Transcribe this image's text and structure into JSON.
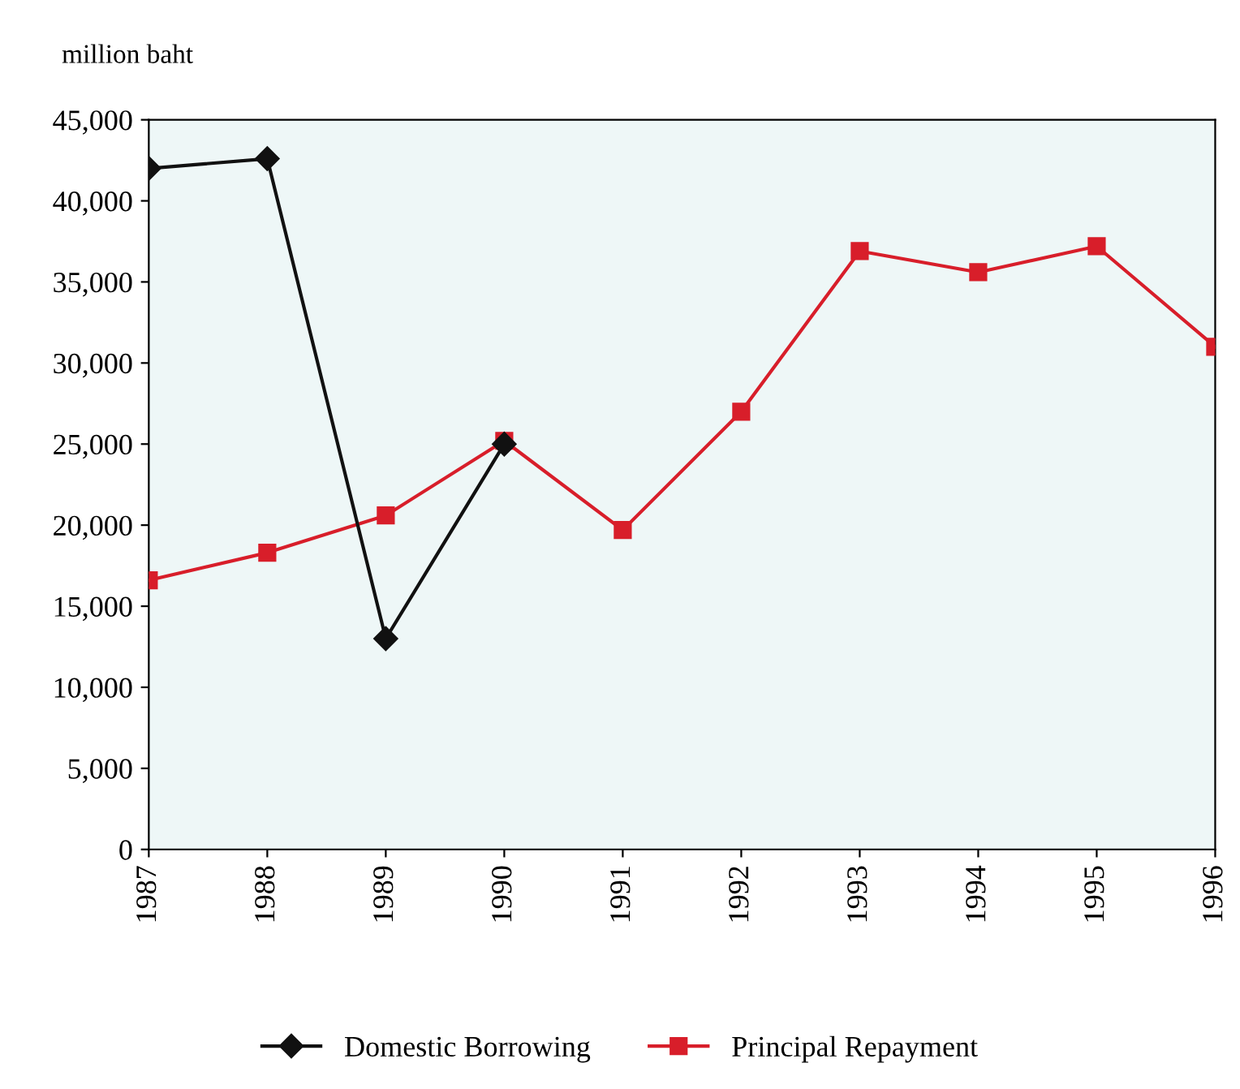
{
  "chart_data": {
    "type": "line",
    "ylabel": "million baht",
    "categories": [
      "1987",
      "1988",
      "1989",
      "1990",
      "1991",
      "1992",
      "1993",
      "1994",
      "1995",
      "1996"
    ],
    "series": [
      {
        "name": "Domestic Borrowing",
        "color": "#111111",
        "marker": "diamond",
        "values": [
          42000,
          42600,
          13000,
          25000,
          null,
          null,
          null,
          null,
          null,
          null
        ]
      },
      {
        "name": "Principal Repayment",
        "color": "#d81e2a",
        "marker": "square",
        "values": [
          16600,
          18300,
          20600,
          25200,
          19700,
          27000,
          36900,
          35600,
          37200,
          31000
        ]
      }
    ],
    "ylim": [
      0,
      45000
    ],
    "yticks": [
      {
        "value": 0,
        "label": "0"
      },
      {
        "value": 5000,
        "label": "5,000"
      },
      {
        "value": 10000,
        "label": "10,000"
      },
      {
        "value": 15000,
        "label": "15,000"
      },
      {
        "value": 20000,
        "label": "20,000"
      },
      {
        "value": 25000,
        "label": "25,000"
      },
      {
        "value": 30000,
        "label": "30,000"
      },
      {
        "value": 35000,
        "label": "35,000"
      },
      {
        "value": 40000,
        "label": "40,000"
      },
      {
        "value": 45000,
        "label": "45,000"
      }
    ],
    "grid": false,
    "legend": "bottom"
  }
}
